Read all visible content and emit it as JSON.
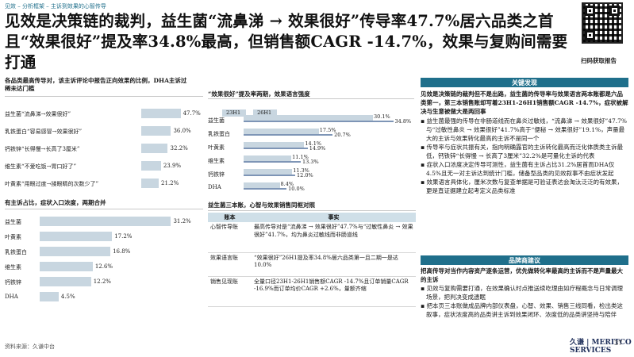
{
  "header": {
    "crumb": "见效 – 分析框架 – 主诉到效果的心智传导",
    "headline": "见效是决策链的裁判，益生菌“流鼻涕 → 效果很好”传导率47.7%居六品类之首且“效果很好”提及率34.8%最高，但销售额CAGR -14.7%，效果与复购间需要打通",
    "qr_caption": "扫码获取报告"
  },
  "left_top": {
    "title": "各品类最高传导对，该主诉评论中报告正向效果的比例，DHA主诉过稀未达门槛",
    "rows": [
      {
        "label": "益生菌“流鼻涕→效果很好”",
        "value": 47.7,
        "display": "47.7%"
      },
      {
        "label": "乳铁蛋白“容易感冒→效果很好”",
        "value": 36.0,
        "display": "36.0%"
      },
      {
        "label": "钙铁锌“长得慢→长高了3厘米”",
        "value": 32.2,
        "display": "32.2%"
      },
      {
        "label": "维生素“不爱吃饭→胃口好了”",
        "value": 23.9,
        "display": "23.9%"
      },
      {
        "label": "叶黄素“用眼过度→揉眼睛的次数少了”",
        "value": 21.2,
        "display": "21.2%"
      }
    ],
    "max": 50
  },
  "left_bottom": {
    "title": "有主诉占比，症状入口浓度，两期合并",
    "rows": [
      {
        "label": "益生菌",
        "value": 31.2,
        "display": "31.2%"
      },
      {
        "label": "叶黄素",
        "value": 17.2,
        "display": "17.2%"
      },
      {
        "label": "乳铁蛋白",
        "value": 16.8,
        "display": "16.8%"
      },
      {
        "label": "维生素",
        "value": 12.6,
        "display": "12.6%"
      },
      {
        "label": "钙铁锌",
        "value": 12.2,
        "display": "12.2%"
      },
      {
        "label": "DHA",
        "value": 4.5,
        "display": "4.5%"
      }
    ],
    "max": 33
  },
  "mid_top": {
    "title": "“效果很好”提及率两期，效果语言强度",
    "legend": [
      "23H1",
      "26H1"
    ],
    "colors": {
      "h23": "#c8d6e0",
      "h26": "#7e95b6"
    },
    "rows": [
      {
        "label": "益生菌",
        "h23": 30.1,
        "h26": 34.8,
        "d23": "30.1%",
        "d26": "34.8%"
      },
      {
        "label": "乳铁蛋白",
        "h23": 17.5,
        "h26": 20.7,
        "d23": "17.5%",
        "d26": "20.7%"
      },
      {
        "label": "叶黄素",
        "h23": 14.1,
        "h26": 14.9,
        "d23": "14.1%",
        "d26": "14.9%"
      },
      {
        "label": "维生素",
        "h23": 11.1,
        "h26": 13.3,
        "d23": "11.1%",
        "d26": "13.3%"
      },
      {
        "label": "钙铁锌",
        "h23": 11.3,
        "h26": 12.0,
        "d23": "11.3%",
        "d26": "12.0%"
      },
      {
        "label": "DHA",
        "h23": 8.4,
        "h26": 10.0,
        "d23": "8.4%",
        "d26": "10.0%"
      }
    ],
    "max": 36
  },
  "mid_table": {
    "title": "益生菌三本账，心智与效果销售同框对照",
    "headers": [
      "账本",
      "事实"
    ],
    "rows": [
      {
        "k": "心智传导账",
        "v": "最高传导对是“流鼻涕 → 效果很好”47.7%与“过敏性鼻炎 → 效果很好”41.7%，均为鼻炎过敏线而非肠道线"
      },
      {
        "k": "效果语言账",
        "v": "“效果很好”26H1提及率34.8%居六品类第一且二期一是达10.0%"
      },
      {
        "k": "销售见现账",
        "v": "全量口径23H1-26H1销售额CAGR -14.7%且订单销量CAGR -16.9%而订单均价CAGR +2.6%，量额齐缩"
      }
    ]
  },
  "findings": {
    "title": "关键发现",
    "intro": "见效是决策链的裁判但不是出路，益生菌的传导率与效果语言两本账都是六品类第一，第三本销售账却写着23H1-26H1销售额CAGR -14.7%，症状被解决与生意被做大是两回事",
    "bullets": [
      "益生菌最强的传导在非肠道线而在鼻炎过敏线，“流鼻涕 → 效果很好”47.7%与“过敏性鼻炎 → 效果很好”41.7%高于“便秘 → 效果很好”19.1%，声量最大的主诉与效果转化最高的主诉不是同一个",
      "传导率与症状共振有关，指向明确露官的主诉转化最高而泛化体质类主诉最低，钙铁锌“长得慢 → 长高了3厘米”32.2%是可量化主诉的代表",
      "症状入口浓度决定传导可测性，益生菌有主诉占比31.2%居首而DHA仅4.5%且无一对主诉达到统计门槛，储备型品类的见效叙事不由症状发起",
      "效果语言具体化，厘米次数与复查单据是可验证表达会淘汰泛泛的有效果，更是直证据建立起考定义品类标准"
    ]
  },
  "advice": {
    "title": "品牌商建议",
    "intro": "把高传导对当作内容资产逐条运营，优先做转化率最高的主诉而不是声量最大的主诉",
    "bullets": [
      "见效与复购需要打通，在效果确认时点推送续吃理由如疗程概念与日常调理场景，把判决变成遗眠",
      "把本页三本账做成品牌内部仪表盘，心智、效果、销售三线同看，检出类这叙事，症状浓度高的品类讲主诉到效果闭环、浓度低的品类讲坚持与陪伴"
    ]
  },
  "footer": {
    "source": "资料来源：久谦中台",
    "logo": "久谦 | MERITCO SERVICES",
    "page": "37"
  }
}
